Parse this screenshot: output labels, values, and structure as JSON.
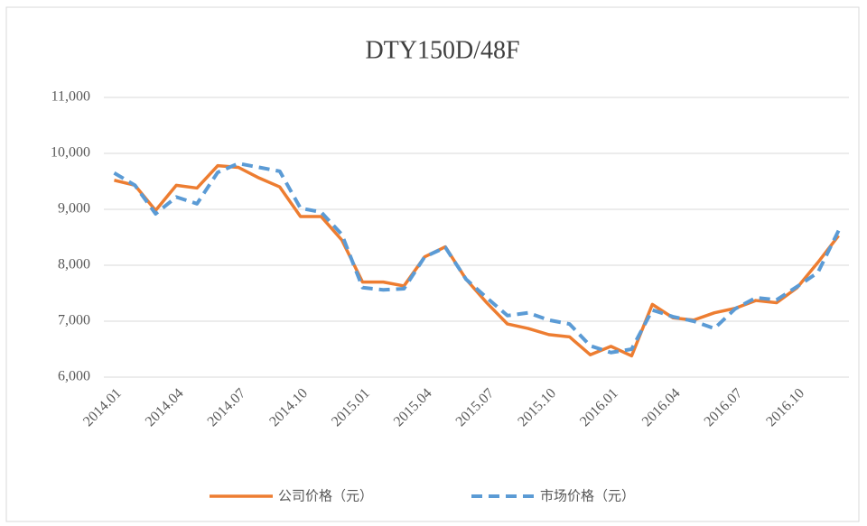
{
  "chart_data": {
    "type": "line",
    "title": "DTY150D/48F",
    "categories": [
      "2014.01",
      null,
      null,
      "2014.04",
      null,
      null,
      "2014.07",
      null,
      null,
      "2014.10",
      null,
      null,
      "2015.01",
      null,
      null,
      "2015.04",
      null,
      null,
      "2015.07",
      null,
      null,
      "2015.10",
      null,
      null,
      "2016.01",
      null,
      null,
      "2016.04",
      null,
      null,
      "2016.07",
      null,
      null,
      "2016.10",
      null,
      null
    ],
    "series": [
      {
        "name": "公司价格（元）",
        "color": "#ed7d31",
        "dash": false,
        "values": [
          9520,
          9430,
          8980,
          9430,
          9380,
          9780,
          9750,
          9560,
          9400,
          8870,
          8870,
          8450,
          7700,
          7700,
          7630,
          8150,
          8330,
          7750,
          7330,
          6950,
          6870,
          6760,
          6720,
          6400,
          6550,
          6380,
          7300,
          7060,
          7020,
          7150,
          7230,
          7370,
          7330,
          7600,
          8050,
          8530
        ]
      },
      {
        "name": "市场价格（元）",
        "color": "#5b9bd5",
        "dash": true,
        "values": [
          9650,
          9430,
          8920,
          9220,
          9100,
          9660,
          9820,
          9750,
          9680,
          9020,
          8950,
          8550,
          7600,
          7560,
          7580,
          8150,
          8320,
          7750,
          7420,
          7100,
          7150,
          7020,
          6950,
          6560,
          6440,
          6500,
          7200,
          7080,
          7000,
          6870,
          7220,
          7420,
          7380,
          7620,
          7870,
          8620
        ]
      }
    ],
    "ylim": [
      6000,
      11000
    ],
    "yticks": [
      {
        "value": 6000,
        "label": "6,000"
      },
      {
        "value": 7000,
        "label": "7,000"
      },
      {
        "value": 8000,
        "label": "8,000"
      },
      {
        "value": 9000,
        "label": "9,000"
      },
      {
        "value": 10000,
        "label": "10,000"
      },
      {
        "value": 11000,
        "label": "11,000"
      }
    ],
    "grid": true,
    "legend": "bottom"
  }
}
